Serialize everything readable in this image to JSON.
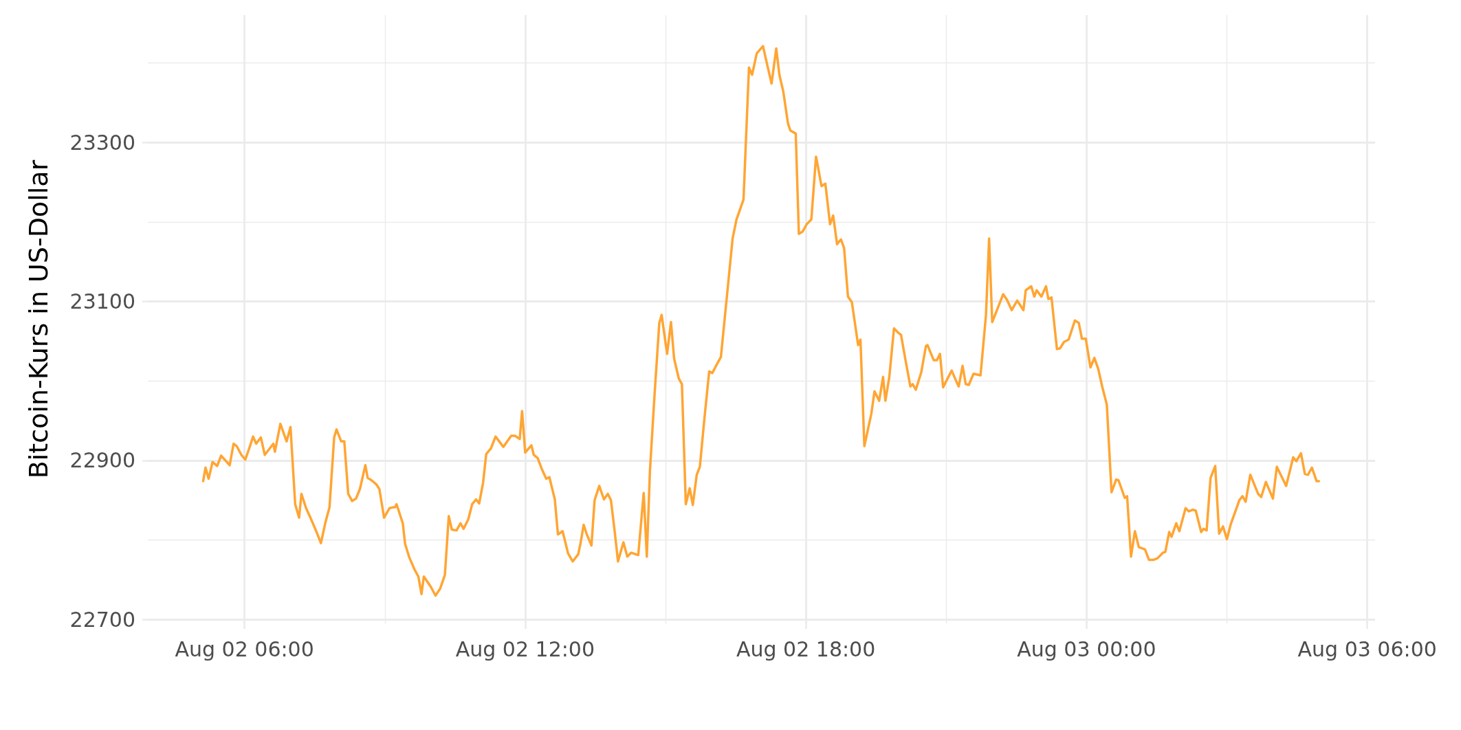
{
  "chart_data": {
    "type": "line",
    "ylabel": "Bitcoin-Kurs in US-Dollar",
    "xlim": [
      "--08-02T03:56",
      "--08-03T06:10"
    ],
    "xticks": [
      {
        "value": "--08-02T06:00",
        "label": "Aug 02 06:00"
      },
      {
        "value": "--08-02T12:00",
        "label": "Aug 02 12:00"
      },
      {
        "value": "--08-02T18:00",
        "label": "Aug 02 18:00"
      },
      {
        "value": "--08-03T00:00",
        "label": "Aug 03 00:00"
      },
      {
        "value": "--08-03T06:00",
        "label": "Aug 03 06:00"
      }
    ],
    "ylim": [
      22695,
      23460
    ],
    "yticks": [
      22700,
      22900,
      23100,
      23300
    ],
    "grid": true,
    "marker": "none",
    "line_style": "solid",
    "series": [
      {
        "color": "#ffa533",
        "x": [
          "--08-02T05:07",
          "--08-02T05:10",
          "--08-02T05:14",
          "--08-02T05:19",
          "--08-02T05:25",
          "--08-02T05:30",
          "--08-02T05:41",
          "--08-02T05:46",
          "--08-02T05:50",
          "--08-02T05:56",
          "--08-02T06:01",
          "--08-02T06:06",
          "--08-02T06:11",
          "--08-02T06:15",
          "--08-02T06:21",
          "--08-02T06:26",
          "--08-02T06:37",
          "--08-02T06:39",
          "--08-02T06:46",
          "--08-02T06:54",
          "--08-02T06:59",
          "--08-02T07:05",
          "--08-02T07:10",
          "--08-02T07:13",
          "--08-02T07:19",
          "--08-02T07:25",
          "--08-02T07:32",
          "--08-02T07:38",
          "--08-02T07:44",
          "--08-02T07:49",
          "--08-02T07:55",
          "--08-02T07:58",
          "--08-02T08:04",
          "--08-02T08:08",
          "--08-02T08:13",
          "--08-02T08:18",
          "--08-02T08:23",
          "--08-02T08:28",
          "--08-02T08:35",
          "--08-02T08:38",
          "--08-02T08:43",
          "--08-02T08:49",
          "--08-02T08:53",
          "--08-02T08:59",
          "--08-02T09:06",
          "--08-02T09:10",
          "--08-02T09:13",
          "--08-02T09:15",
          "--08-02T09:23",
          "--08-02T09:26",
          "--08-02T09:31",
          "--08-02T09:38",
          "--08-02T09:43",
          "--08-02T09:47",
          "--08-02T09:50",
          "--08-02T09:59",
          "--08-02T10:05",
          "--08-02T10:11",
          "--08-02T10:17",
          "--08-02T10:22",
          "--08-02T10:26",
          "--08-02T10:32",
          "--08-02T10:37",
          "--08-02T10:41",
          "--08-02T10:47",
          "--08-02T10:52",
          "--08-02T10:57",
          "--08-02T11:01",
          "--08-02T11:06",
          "--08-02T11:10",
          "--08-02T11:16",
          "--08-02T11:22",
          "--08-02T11:32",
          "--08-02T11:42",
          "--08-02T11:47",
          "--08-02T11:53",
          "--08-02T11:56",
          "--08-02T12:00",
          "--08-02T12:08",
          "--08-02T12:11",
          "--08-02T12:16",
          "--08-02T12:21",
          "--08-02T12:27",
          "--08-02T12:31",
          "--08-02T12:38",
          "--08-02T12:42",
          "--08-02T12:48",
          "--08-02T12:55",
          "--08-02T13:01",
          "--08-02T13:08",
          "--08-02T13:11",
          "--08-02T13:15",
          "--08-02T13:19",
          "--08-02T13:25",
          "--08-02T13:29",
          "--08-02T13:35",
          "--08-02T13:41",
          "--08-02T13:46",
          "--08-02T13:50",
          "--08-02T13:55",
          "--08-02T13:59",
          "--08-02T14:06",
          "--08-02T14:11",
          "--08-02T14:16",
          "--08-02T14:25",
          "--08-02T14:32",
          "--08-02T14:36",
          "--08-02T14:40",
          "--08-02T14:46",
          "--08-02T14:52",
          "--08-02T14:55",
          "--08-02T15:02",
          "--08-02T15:07",
          "--08-02T15:11",
          "--08-02T15:17",
          "--08-02T15:21",
          "--08-02T15:26",
          "--08-02T15:31",
          "--08-02T15:35",
          "--08-02T15:40",
          "--08-02T15:44",
          "--08-02T15:50",
          "--08-02T15:56",
          "--08-02T16:00",
          "--08-02T16:07",
          "--08-02T16:11",
          "--08-02T16:22",
          "--08-02T16:26",
          "--08-02T16:31",
          "--08-02T16:40",
          "--08-02T16:47",
          "--08-02T16:51",
          "--08-02T16:57",
          "--08-02T17:05",
          "--08-02T17:11",
          "--08-02T17:16",
          "--08-02T17:22",
          "--08-02T17:26",
          "--08-02T17:31",
          "--08-02T17:37",
          "--08-02T17:40",
          "--08-02T17:47",
          "--08-02T17:51",
          "--08-02T17:56",
          "--08-02T18:01",
          "--08-02T18:07",
          "--08-02T18:13",
          "--08-02T18:15",
          "--08-02T18:20",
          "--08-02T18:25",
          "--08-02T18:31",
          "--08-02T18:35",
          "--08-02T18:40",
          "--08-02T18:45",
          "--08-02T18:49",
          "--08-02T18:54",
          "--08-02T18:59",
          "--08-02T19:07",
          "--08-02T19:10",
          "--08-02T19:15",
          "--08-02T19:24",
          "--08-02T19:28",
          "--08-02T19:34",
          "--08-02T19:39",
          "--08-02T19:42",
          "--08-02T19:47",
          "--08-02T19:53",
          "--08-02T19:58",
          "--08-02T20:02",
          "--08-02T20:08",
          "--08-02T20:14",
          "--08-02T20:17",
          "--08-02T20:21",
          "--08-02T20:28",
          "--08-02T20:34",
          "--08-02T20:36",
          "--08-02T20:44",
          "--08-02T20:48",
          "--08-02T20:52",
          "--08-02T20:56",
          "--08-02T21:07",
          "--08-02T21:14",
          "--08-02T21:16",
          "--08-02T21:21",
          "--08-02T21:25",
          "--08-02T21:29",
          "--08-02T21:35",
          "--08-02T21:44",
          "--08-02T21:51",
          "--08-02T21:55",
          "--08-02T21:59",
          "--08-02T22:13",
          "--08-02T22:18",
          "--08-02T22:24",
          "--08-02T22:31",
          "--08-02T22:39",
          "--08-02T22:42",
          "--08-02T22:49",
          "--08-02T22:53",
          "--08-02T22:56",
          "--08-02T23:02",
          "--08-02T23:08",
          "--08-02T23:11",
          "--08-02T23:15",
          "--08-02T23:22",
          "--08-02T23:26",
          "--08-02T23:31",
          "--08-02T23:37",
          "--08-02T23:45",
          "--08-02T23:50",
          "--08-02T23:54",
          "--08-02T23:59",
          "--08-03T00:05",
          "--08-03T00:10",
          "--08-03T00:15",
          "--08-03T00:20",
          "--08-03T00:26",
          "--08-03T00:32",
          "--08-03T00:38",
          "--08-03T00:41",
          "--08-03T00:49",
          "--08-03T00:52",
          "--08-03T00:57",
          "--08-03T01:02",
          "--08-03T01:07",
          "--08-03T01:15",
          "--08-03T01:20",
          "--08-03T01:26",
          "--08-03T01:31",
          "--08-03T01:38",
          "--08-03T01:41",
          "--08-03T01:46",
          "--08-03T01:49",
          "--08-03T01:55",
          "--08-03T01:59",
          "--08-03T02:07",
          "--08-03T02:11",
          "--08-03T02:16",
          "--08-03T02:20",
          "--08-03T02:27",
          "--08-03T02:30",
          "--08-03T02:34",
          "--08-03T02:39",
          "--08-03T02:45",
          "--08-03T02:50",
          "--08-03T02:55",
          "--08-03T03:00",
          "--08-03T03:05",
          "--08-03T03:16",
          "--08-03T03:20",
          "--08-03T03:24",
          "--08-03T03:30",
          "--08-03T03:40",
          "--08-03T03:44",
          "--08-03T03:50",
          "--08-03T03:59",
          "--08-03T04:04",
          "--08-03T04:09",
          "--08-03T04:16",
          "--08-03T04:25",
          "--08-03T04:29",
          "--08-03T04:35",
          "--08-03T04:40",
          "--08-03T04:44",
          "--08-03T04:49",
          "--08-03T04:55",
          "--08-03T04:58"
        ],
        "values": [
          22874,
          22891,
          22877,
          22898,
          22893,
          22906,
          22894,
          22921,
          22918,
          22907,
          22901,
          22915,
          22930,
          22921,
          22929,
          22907,
          22921,
          22911,
          22946,
          22924,
          22942,
          22845,
          22828,
          22858,
          22840,
          22827,
          22811,
          22796,
          22823,
          22841,
          22929,
          22939,
          22924,
          22924,
          22858,
          22849,
          22852,
          22864,
          22894,
          22878,
          22875,
          22870,
          22864,
          22828,
          22840,
          22841,
          22841,
          22845,
          22821,
          22795,
          22779,
          22763,
          22754,
          22732,
          22754,
          22741,
          22730,
          22739,
          22756,
          22830,
          22813,
          22812,
          22821,
          22814,
          22826,
          22845,
          22851,
          22846,
          22872,
          22908,
          22915,
          22930,
          22917,
          22931,
          22931,
          22927,
          22962,
          22910,
          22919,
          22907,
          22903,
          22890,
          22877,
          22879,
          22851,
          22807,
          22811,
          22783,
          22773,
          22782,
          22796,
          22819,
          22807,
          22793,
          22850,
          22868,
          22851,
          22858,
          22850,
          22809,
          22773,
          22797,
          22779,
          22784,
          22781,
          22859,
          22779,
          22887,
          22984,
          23073,
          23083,
          23034,
          23074,
          23028,
          23003,
          22996,
          22845,
          22865,
          22844,
          22882,
          22892,
          22954,
          23012,
          23010,
          23023,
          23030,
          23139,
          23179,
          23203,
          23228,
          23394,
          23385,
          23412,
          23421,
          23395,
          23374,
          23418,
          23385,
          23364,
          23324,
          23315,
          23311,
          23185,
          23188,
          23197,
          23203,
          23282,
          23272,
          23245,
          23248,
          23197,
          23208,
          23172,
          23178,
          23167,
          23106,
          23099,
          23045,
          23052,
          22918,
          22959,
          22987,
          22975,
          23005,
          22975,
          23005,
          23066,
          23061,
          23058,
          23025,
          22993,
          22996,
          22989,
          23011,
          23044,
          23045,
          23026,
          23026,
          23034,
          22992,
          23013,
          22997,
          22993,
          23019,
          22996,
          22995,
          23009,
          23007,
          23083,
          23179,
          23074,
          23109,
          23102,
          23089,
          23101,
          23089,
          23114,
          23119,
          23106,
          23114,
          23106,
          23119,
          23103,
          23105,
          23040,
          23041,
          23049,
          23052,
          23076,
          23073,
          23053,
          23053,
          23017,
          23029,
          23015,
          22993,
          22970,
          22860,
          22876,
          22875,
          22853,
          22855,
          22779,
          22811,
          22791,
          22788,
          22775,
          22775,
          22777,
          22784,
          22785,
          22810,
          22804,
          22821,
          22811,
          22840,
          22836,
          22838,
          22837,
          22810,
          22814,
          22812,
          22878,
          22893,
          22808,
          22817,
          22801,
          22820,
          22850,
          22855,
          22848,
          22882,
          22858,
          22854,
          22873,
          22852,
          22892,
          22882,
          22868,
          22904,
          22899,
          22909,
          22883,
          22882,
          22891,
          22874,
          22874
        ]
      }
    ]
  }
}
